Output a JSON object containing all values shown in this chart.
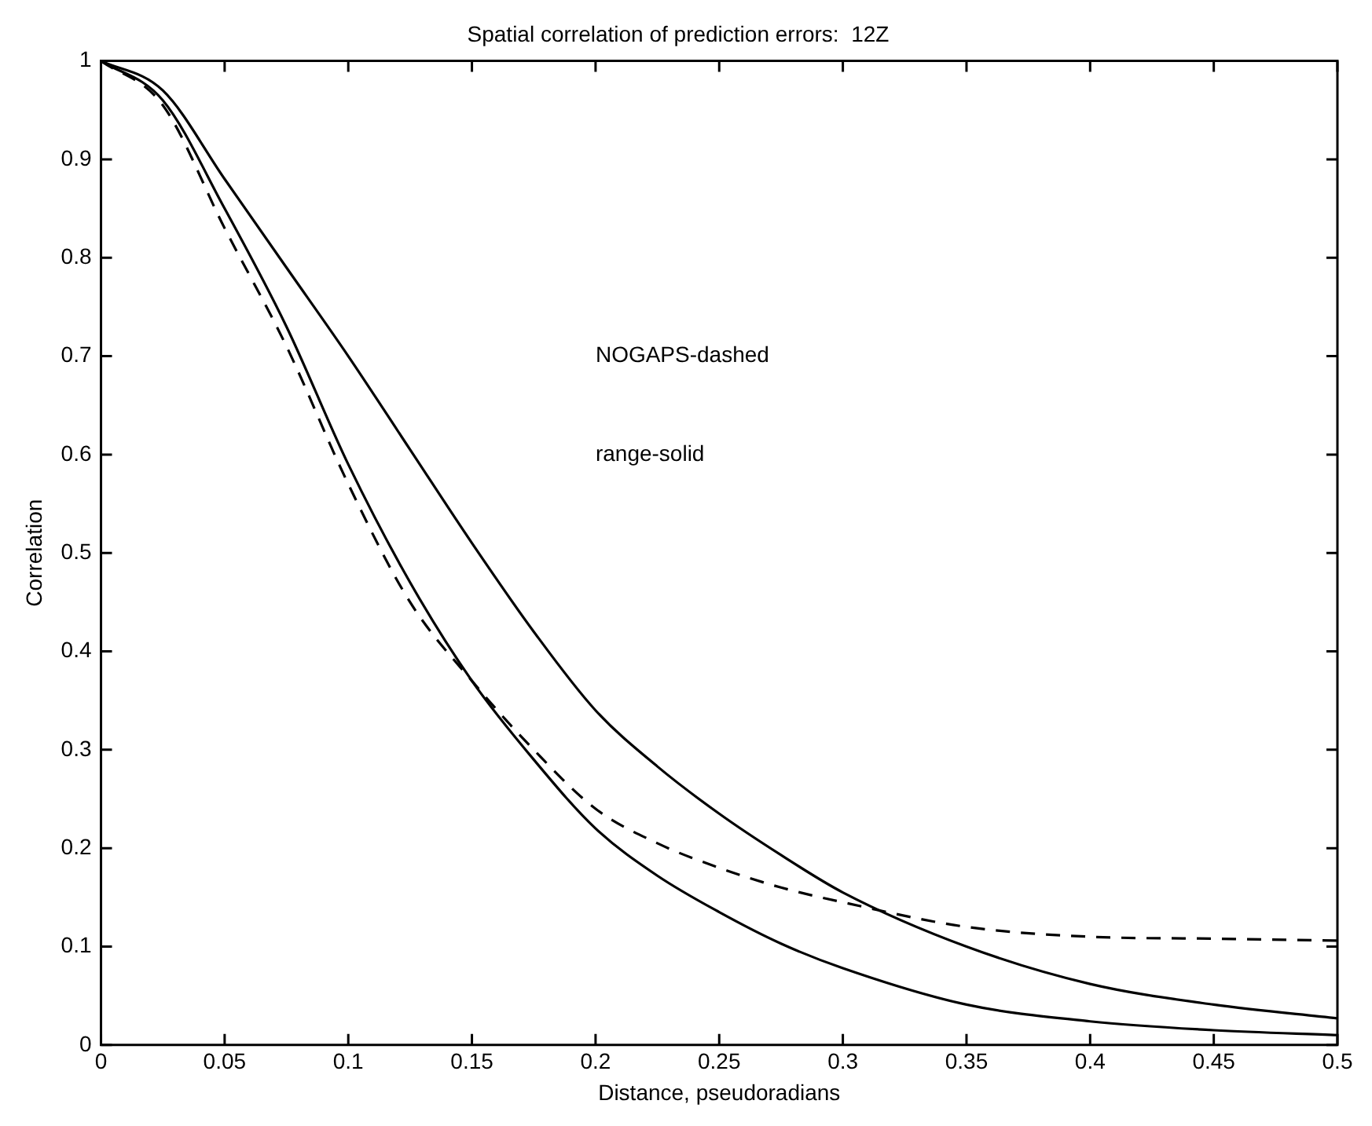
{
  "chart_data": {
    "type": "line",
    "title": "Spatial correlation of prediction errors:  12Z",
    "xlabel": "Distance, pseudoradians",
    "ylabel": "Correlation",
    "x": [
      0,
      0.025,
      0.05,
      0.075,
      0.1,
      0.125,
      0.15,
      0.175,
      0.2,
      0.225,
      0.25,
      0.275,
      0.3,
      0.35,
      0.4,
      0.45,
      0.5
    ],
    "series": [
      {
        "color": "#000000",
        "line_style": "solid",
        "values": [
          1,
          0.97,
          0.88,
          0.79,
          0.7,
          0.605,
          0.51,
          0.42,
          0.34,
          0.283,
          0.235,
          0.193,
          0.155,
          0.1,
          0.062,
          0.041,
          0.027
        ]
      },
      {
        "color": "#000000",
        "line_style": "solid",
        "values": [
          1,
          0.96,
          0.85,
          0.73,
          0.59,
          0.47,
          0.37,
          0.29,
          0.22,
          0.172,
          0.135,
          0.103,
          0.078,
          0.041,
          0.024,
          0.015,
          0.01
        ]
      },
      {
        "color": "#000000",
        "line_style": "dashed",
        "values": [
          1,
          0.955,
          0.83,
          0.71,
          0.57,
          0.45,
          0.37,
          0.3,
          0.24,
          0.205,
          0.18,
          0.16,
          0.145,
          0.12,
          0.11,
          0.108,
          0.106
        ]
      }
    ],
    "annotations": [
      "NOGAPS-dashed",
      "range-solid"
    ],
    "xlim": [
      0,
      0.5
    ],
    "xticks": [
      0,
      0.05,
      0.1,
      0.15,
      0.2,
      0.25,
      0.3,
      0.35,
      0.4,
      0.45,
      0.5
    ],
    "ylim": [
      0,
      1
    ],
    "yticks": [
      0,
      0.1,
      0.2,
      0.3,
      0.4,
      0.5,
      0.6,
      0.7,
      0.8,
      0.9,
      1
    ],
    "grid": false,
    "legend": false,
    "marker": "none"
  }
}
